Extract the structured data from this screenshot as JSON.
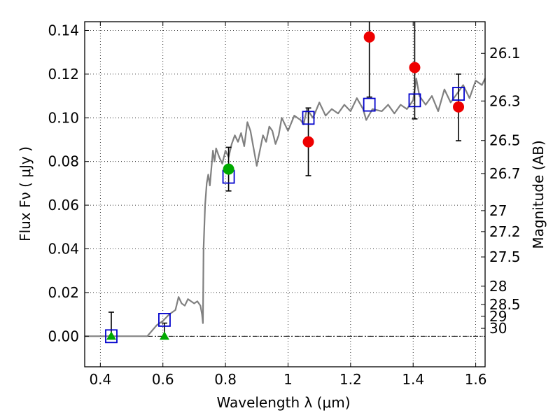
{
  "chart_data": {
    "type": "scatter",
    "xlabel": "Wavelength  λ (μm)",
    "ylabel": "Flux  Fν  ( μJy )",
    "ylabel_right": "Magnitude (AB)",
    "xlim": [
      0.35,
      1.63
    ],
    "ylim": [
      -0.014,
      0.144
    ],
    "grid": true,
    "x_ticks": [
      0.4,
      0.6,
      0.8,
      1.0,
      1.2,
      1.4,
      1.6
    ],
    "x_tick_labels": [
      "0.4",
      "0.6",
      "0.8",
      "1",
      "1.2",
      "1.4",
      "1.6"
    ],
    "y_ticks": [
      0.0,
      0.02,
      0.04,
      0.06,
      0.08,
      0.1,
      0.12,
      0.14
    ],
    "y_tick_labels": [
      "0.00",
      "0.02",
      "0.04",
      "0.06",
      "0.08",
      "0.10",
      "0.12",
      "0.14"
    ],
    "right_ticks": [
      {
        "label": "26.1",
        "flux": 0.1295
      },
      {
        "label": "26.3",
        "flux": 0.1077
      },
      {
        "label": "26.5",
        "flux": 0.0896
      },
      {
        "label": "26.7",
        "flux": 0.0745
      },
      {
        "label": "27",
        "flux": 0.0575
      },
      {
        "label": "27.2",
        "flux": 0.0479
      },
      {
        "label": "27.5",
        "flux": 0.0363
      },
      {
        "label": "28",
        "flux": 0.0229
      },
      {
        "label": "28.5",
        "flux": 0.0145
      },
      {
        "label": "29",
        "flux": 0.0091
      },
      {
        "label": "30",
        "flux": 0.0036
      }
    ],
    "model_spectrum": {
      "color": "#808080",
      "x": [
        0.35,
        0.55,
        0.58,
        0.6,
        0.62,
        0.64,
        0.65,
        0.66,
        0.67,
        0.68,
        0.69,
        0.7,
        0.71,
        0.72,
        0.725,
        0.728,
        0.73,
        0.735,
        0.74,
        0.745,
        0.75,
        0.76,
        0.765,
        0.77,
        0.78,
        0.79,
        0.8,
        0.81,
        0.82,
        0.83,
        0.84,
        0.85,
        0.86,
        0.87,
        0.88,
        0.9,
        0.92,
        0.93,
        0.94,
        0.95,
        0.96,
        0.97,
        0.98,
        1.0,
        1.02,
        1.04,
        1.05,
        1.06,
        1.08,
        1.1,
        1.12,
        1.14,
        1.16,
        1.18,
        1.2,
        1.22,
        1.24,
        1.25,
        1.27,
        1.3,
        1.32,
        1.34,
        1.36,
        1.38,
        1.4,
        1.41,
        1.42,
        1.44,
        1.46,
        1.48,
        1.5,
        1.52,
        1.54,
        1.56,
        1.58,
        1.6,
        1.62,
        1.63
      ],
      "y": [
        0.0,
        0.0,
        0.005,
        0.007,
        0.01,
        0.012,
        0.018,
        0.015,
        0.014,
        0.017,
        0.016,
        0.015,
        0.016,
        0.014,
        0.01,
        0.006,
        0.04,
        0.06,
        0.07,
        0.074,
        0.069,
        0.085,
        0.08,
        0.086,
        0.082,
        0.079,
        0.085,
        0.082,
        0.088,
        0.092,
        0.089,
        0.093,
        0.087,
        0.098,
        0.094,
        0.078,
        0.092,
        0.089,
        0.096,
        0.094,
        0.088,
        0.092,
        0.1,
        0.094,
        0.101,
        0.099,
        0.097,
        0.104,
        0.1,
        0.107,
        0.101,
        0.104,
        0.102,
        0.106,
        0.103,
        0.109,
        0.104,
        0.099,
        0.104,
        0.103,
        0.106,
        0.102,
        0.106,
        0.104,
        0.108,
        0.118,
        0.11,
        0.106,
        0.11,
        0.103,
        0.113,
        0.107,
        0.111,
        0.115,
        0.109,
        0.117,
        0.115,
        0.118
      ]
    },
    "series": [
      {
        "marker": "square-open",
        "color": "#0000cc",
        "x": [
          0.435,
          0.605,
          0.81,
          1.065,
          1.26,
          1.405,
          1.545
        ],
        "y": [
          0.0,
          0.0075,
          0.073,
          0.1,
          0.106,
          0.108,
          0.111
        ]
      },
      {
        "marker": "circle",
        "color": "#ee0000",
        "x": [
          1.065,
          1.26,
          1.405,
          1.545
        ],
        "y": [
          0.089,
          0.137,
          0.123,
          0.105
        ],
        "yerr_low": [
          0.0735,
          0.1095,
          0.0995,
          0.0895
        ],
        "yerr_high": [
          0.1045,
          0.15,
          0.15,
          0.12
        ]
      },
      {
        "marker": "circle",
        "color": "#00aa00",
        "x": [
          0.81
        ],
        "y": [
          0.0765
        ],
        "yerr_low": [
          0.0665
        ],
        "yerr_high": [
          0.0865
        ]
      },
      {
        "marker": "triangle",
        "color": "#00aa00",
        "x": [
          0.435,
          0.605
        ],
        "y": [
          0.0,
          0.0
        ],
        "yerr_low": [
          0.0,
          0.0
        ],
        "yerr_high": [
          0.011,
          0.006
        ]
      }
    ]
  }
}
